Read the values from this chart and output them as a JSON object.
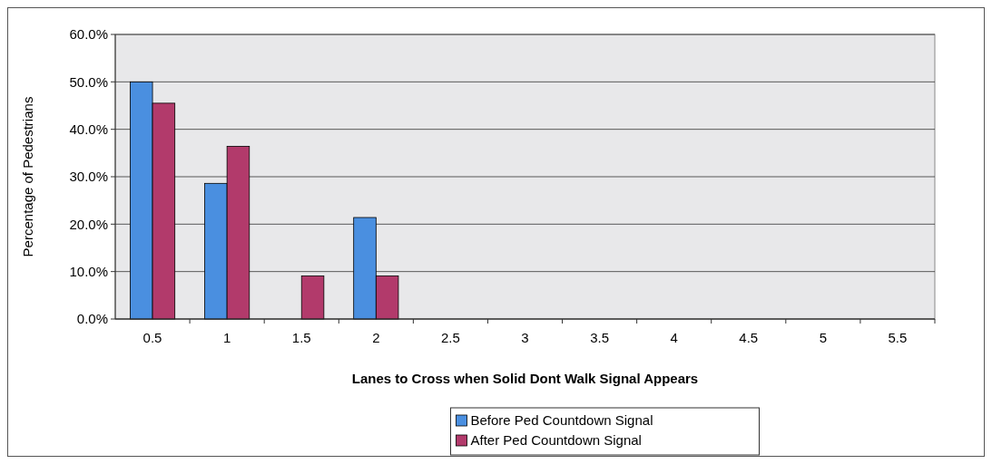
{
  "chart_data": {
    "type": "bar",
    "xlabel": "Lanes to Cross when Solid Dont Walk Signal Appears",
    "ylabel": "Percentage of Pedestrians",
    "categories": [
      "0.5",
      "1",
      "1.5",
      "2",
      "2.5",
      "3",
      "3.5",
      "4",
      "4.5",
      "5",
      "5.5"
    ],
    "series": [
      {
        "name": "Before Ped Countdown Signal",
        "color": "#4a8fe0",
        "values": [
          50.0,
          28.6,
          0,
          21.4,
          0,
          0,
          0,
          0,
          0,
          0,
          0
        ]
      },
      {
        "name": "After Ped Countdown Signal",
        "color": "#b23a6b",
        "values": [
          45.5,
          36.4,
          9.1,
          9.1,
          0,
          0,
          0,
          0,
          0,
          0,
          0
        ]
      }
    ],
    "ylim": [
      0,
      60
    ],
    "yticks": [
      {
        "value": 0,
        "label": "0.0%"
      },
      {
        "value": 10,
        "label": "10.0%"
      },
      {
        "value": 20,
        "label": "20.0%"
      },
      {
        "value": 30,
        "label": "30.0%"
      },
      {
        "value": 40,
        "label": "40.0%"
      },
      {
        "value": 50,
        "label": "50.0%"
      },
      {
        "value": 60,
        "label": "60.0%"
      }
    ],
    "grid": "y",
    "legend": "bottom"
  }
}
